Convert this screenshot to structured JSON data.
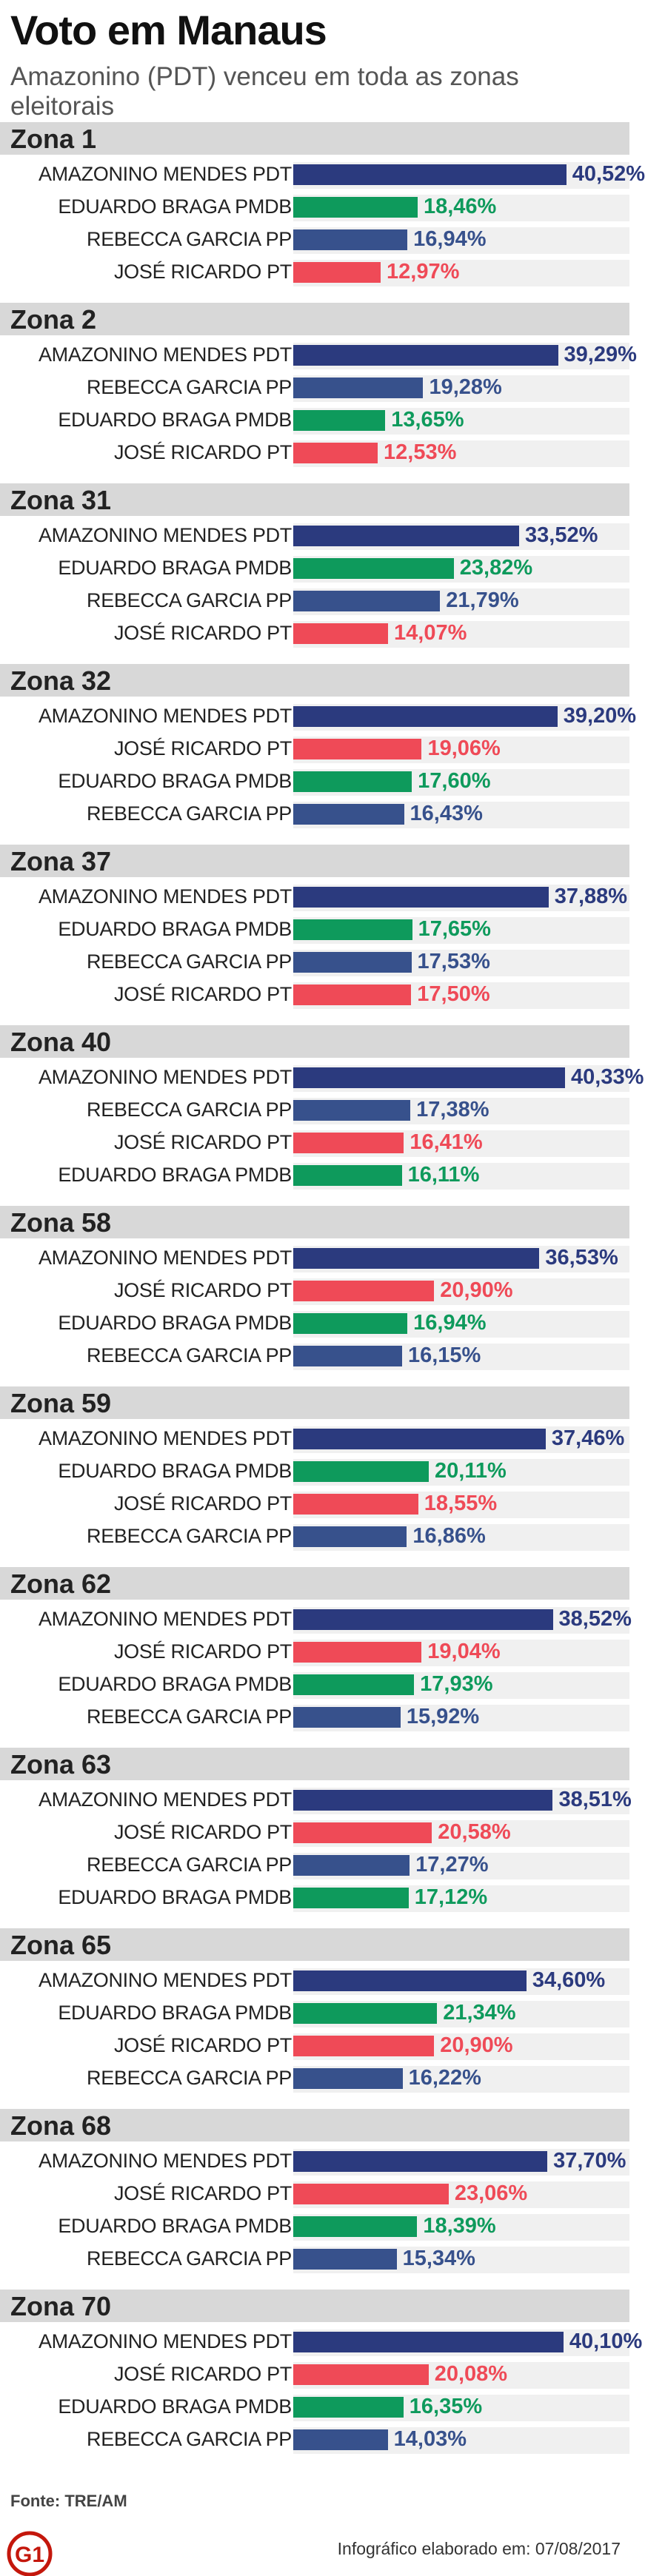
{
  "header": {
    "title": "Voto em Manaus",
    "subtitle": "Amazonino (PDT) venceu em toda as zonas eleitorais"
  },
  "colors": {
    "PDT": "#2b3a7e",
    "PMDB": "#0e9a5c",
    "PP": "#37518c",
    "PT": "#ef4a57",
    "zone_header_bg": "#d8d8d8",
    "track_bg": "#f0f0f0",
    "logo": "#c4170c"
  },
  "chart_data": {
    "type": "bar",
    "orientation": "horizontal",
    "unit": "%",
    "xlim": [
      0,
      50
    ],
    "zones": [
      {
        "name": "Zona 1",
        "results": [
          {
            "candidate": "AMAZONINO MENDES",
            "party": "PDT",
            "value": 40.52,
            "label": "40,52%"
          },
          {
            "candidate": "EDUARDO BRAGA",
            "party": "PMDB",
            "value": 18.46,
            "label": "18,46%"
          },
          {
            "candidate": "REBECCA GARCIA",
            "party": "PP",
            "value": 16.94,
            "label": "16,94%"
          },
          {
            "candidate": "JOSÉ RICARDO",
            "party": "PT",
            "value": 12.97,
            "label": "12,97%"
          }
        ]
      },
      {
        "name": "Zona 2",
        "results": [
          {
            "candidate": "AMAZONINO MENDES",
            "party": "PDT",
            "value": 39.29,
            "label": "39,29%"
          },
          {
            "candidate": "REBECCA GARCIA",
            "party": "PP",
            "value": 19.28,
            "label": "19,28%"
          },
          {
            "candidate": "EDUARDO BRAGA",
            "party": "PMDB",
            "value": 13.65,
            "label": "13,65%"
          },
          {
            "candidate": "JOSÉ RICARDO",
            "party": "PT",
            "value": 12.53,
            "label": "12,53%"
          }
        ]
      },
      {
        "name": "Zona 31",
        "results": [
          {
            "candidate": "AMAZONINO MENDES",
            "party": "PDT",
            "value": 33.52,
            "label": "33,52%"
          },
          {
            "candidate": "EDUARDO BRAGA",
            "party": "PMDB",
            "value": 23.82,
            "label": "23,82%"
          },
          {
            "candidate": "REBECCA GARCIA",
            "party": "PP",
            "value": 21.79,
            "label": "21,79%"
          },
          {
            "candidate": "JOSÉ RICARDO",
            "party": "PT",
            "value": 14.07,
            "label": "14,07%"
          }
        ]
      },
      {
        "name": "Zona 32",
        "results": [
          {
            "candidate": "AMAZONINO MENDES",
            "party": "PDT",
            "value": 39.2,
            "label": "39,20%"
          },
          {
            "candidate": "JOSÉ RICARDO",
            "party": "PT",
            "value": 19.06,
            "label": "19,06%"
          },
          {
            "candidate": "EDUARDO BRAGA",
            "party": "PMDB",
            "value": 17.6,
            "label": "17,60%"
          },
          {
            "candidate": "REBECCA GARCIA",
            "party": "PP",
            "value": 16.43,
            "label": "16,43%"
          }
        ]
      },
      {
        "name": "Zona 37",
        "results": [
          {
            "candidate": "AMAZONINO MENDES",
            "party": "PDT",
            "value": 37.88,
            "label": "37,88%"
          },
          {
            "candidate": "EDUARDO BRAGA",
            "party": "PMDB",
            "value": 17.65,
            "label": "17,65%"
          },
          {
            "candidate": "REBECCA GARCIA",
            "party": "PP",
            "value": 17.53,
            "label": "17,53%"
          },
          {
            "candidate": "JOSÉ RICARDO",
            "party": "PT",
            "value": 17.5,
            "label": "17,50%"
          }
        ]
      },
      {
        "name": "Zona 40",
        "results": [
          {
            "candidate": "AMAZONINO MENDES",
            "party": "PDT",
            "value": 40.33,
            "label": "40,33%"
          },
          {
            "candidate": "REBECCA GARCIA",
            "party": "PP",
            "value": 17.38,
            "label": "17,38%"
          },
          {
            "candidate": "JOSÉ RICARDO",
            "party": "PT",
            "value": 16.41,
            "label": "16,41%"
          },
          {
            "candidate": "EDUARDO BRAGA",
            "party": "PMDB",
            "value": 16.11,
            "label": "16,11%"
          }
        ]
      },
      {
        "name": "Zona 58",
        "results": [
          {
            "candidate": "AMAZONINO MENDES",
            "party": "PDT",
            "value": 36.53,
            "label": "36,53%"
          },
          {
            "candidate": "JOSÉ RICARDO",
            "party": "PT",
            "value": 20.9,
            "label": "20,90%"
          },
          {
            "candidate": "EDUARDO BRAGA",
            "party": "PMDB",
            "value": 16.94,
            "label": "16,94%"
          },
          {
            "candidate": "REBECCA GARCIA",
            "party": "PP",
            "value": 16.15,
            "label": "16,15%"
          }
        ]
      },
      {
        "name": "Zona 59",
        "results": [
          {
            "candidate": "AMAZONINO MENDES",
            "party": "PDT",
            "value": 37.46,
            "label": "37,46%"
          },
          {
            "candidate": "EDUARDO BRAGA",
            "party": "PMDB",
            "value": 20.11,
            "label": "20,11%"
          },
          {
            "candidate": "JOSÉ RICARDO",
            "party": "PT",
            "value": 18.55,
            "label": "18,55%"
          },
          {
            "candidate": "REBECCA GARCIA",
            "party": "PP",
            "value": 16.86,
            "label": "16,86%"
          }
        ]
      },
      {
        "name": "Zona 62",
        "results": [
          {
            "candidate": "AMAZONINO MENDES",
            "party": "PDT",
            "value": 38.52,
            "label": "38,52%"
          },
          {
            "candidate": "JOSÉ RICARDO",
            "party": "PT",
            "value": 19.04,
            "label": "19,04%"
          },
          {
            "candidate": "EDUARDO BRAGA",
            "party": "PMDB",
            "value": 17.93,
            "label": "17,93%"
          },
          {
            "candidate": "REBECCA GARCIA",
            "party": "PP",
            "value": 15.92,
            "label": "15,92%"
          }
        ]
      },
      {
        "name": "Zona 63",
        "results": [
          {
            "candidate": "AMAZONINO MENDES",
            "party": "PDT",
            "value": 38.51,
            "label": "38,51%"
          },
          {
            "candidate": "JOSÉ RICARDO",
            "party": "PT",
            "value": 20.58,
            "label": "20,58%"
          },
          {
            "candidate": "REBECCA GARCIA",
            "party": "PP",
            "value": 17.27,
            "label": "17,27%"
          },
          {
            "candidate": "EDUARDO BRAGA",
            "party": "PMDB",
            "value": 17.12,
            "label": "17,12%"
          }
        ]
      },
      {
        "name": "Zona 65",
        "results": [
          {
            "candidate": "AMAZONINO MENDES",
            "party": "PDT",
            "value": 34.6,
            "label": "34,60%"
          },
          {
            "candidate": "EDUARDO BRAGA",
            "party": "PMDB",
            "value": 21.34,
            "label": "21,34%"
          },
          {
            "candidate": "JOSÉ RICARDO",
            "party": "PT",
            "value": 20.9,
            "label": "20,90%"
          },
          {
            "candidate": "REBECCA GARCIA",
            "party": "PP",
            "value": 16.22,
            "label": "16,22%"
          }
        ]
      },
      {
        "name": "Zona 68",
        "results": [
          {
            "candidate": "AMAZONINO MENDES",
            "party": "PDT",
            "value": 37.7,
            "label": "37,70%"
          },
          {
            "candidate": "JOSÉ RICARDO",
            "party": "PT",
            "value": 23.06,
            "label": "23,06%"
          },
          {
            "candidate": "EDUARDO BRAGA",
            "party": "PMDB",
            "value": 18.39,
            "label": "18,39%"
          },
          {
            "candidate": "REBECCA GARCIA",
            "party": "PP",
            "value": 15.34,
            "label": "15,34%"
          }
        ]
      },
      {
        "name": "Zona 70",
        "results": [
          {
            "candidate": "AMAZONINO MENDES",
            "party": "PDT",
            "value": 40.1,
            "label": "40,10%"
          },
          {
            "candidate": "JOSÉ RICARDO",
            "party": "PT",
            "value": 20.08,
            "label": "20,08%"
          },
          {
            "candidate": "EDUARDO BRAGA",
            "party": "PMDB",
            "value": 16.35,
            "label": "16,35%"
          },
          {
            "candidate": "REBECCA GARCIA",
            "party": "PP",
            "value": 14.03,
            "label": "14,03%"
          }
        ]
      }
    ]
  },
  "footer": {
    "source": "Fonte: TRE/AM",
    "logo_text": "G1",
    "credit": "Infográfico elaborado em: 07/08/2017"
  }
}
